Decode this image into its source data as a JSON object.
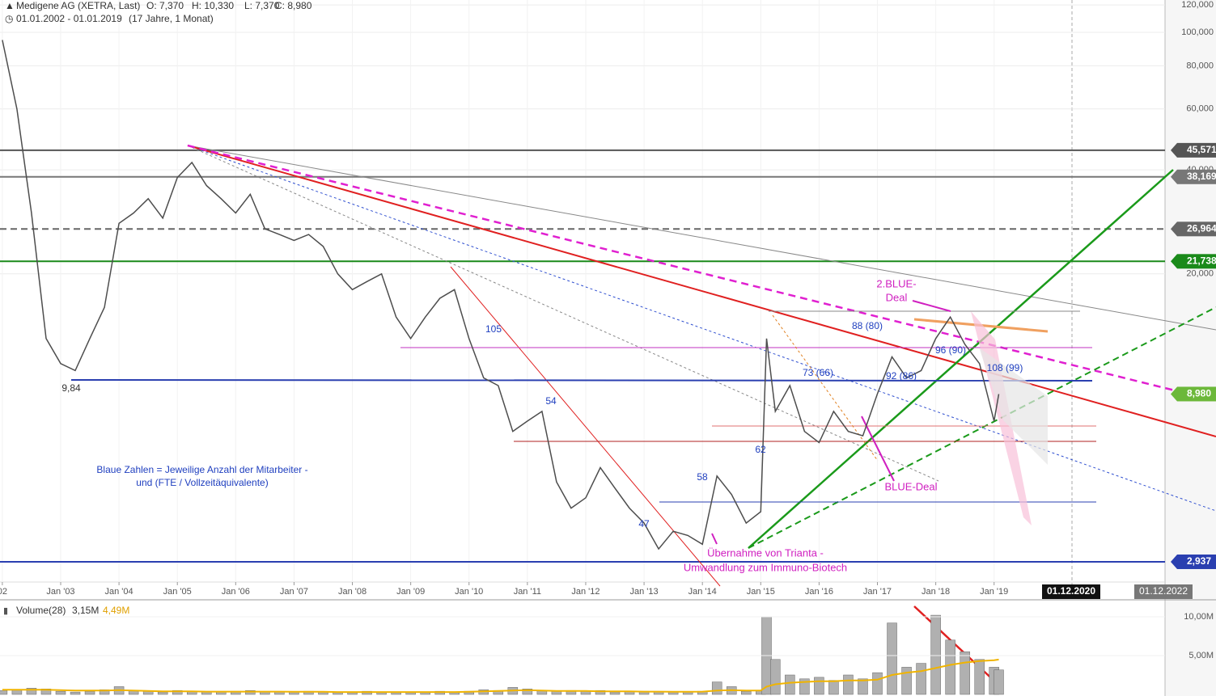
{
  "header": {
    "title": "Medigene AG (XETRA, Last)",
    "open": "O: 7,370",
    "high": "H: 10,330",
    "low": "L: 7,370",
    "close": "C: 8,980",
    "range": "01.01.2002 - 01.01.2019",
    "duration": "(17 Jahre, 1 Monat)"
  },
  "date_markers": [
    "01.12.2020",
    "01.12.2022"
  ],
  "annotations": [
    "9,84",
    "105",
    "54",
    "47",
    "58",
    "62",
    "73 (66)",
    "88 (80)",
    "92 (86)",
    "96 (90)",
    "108 (99)",
    "2.BLUE-",
    "Deal",
    "BLUE-Deal",
    "Übernahme von Trianta -",
    "Umwandlung zum Immuno-Biotech",
    "Blaue Zahlen = Jeweilige Anzahl der Mitarbeiter -",
    "und (FTE / Vollzeitäquivalente)"
  ],
  "chart_data": [
    {
      "type": "line",
      "log_scale": true,
      "grid": true,
      "color": "#4d4d4d",
      "x": [
        2002,
        2002.25,
        2002.5,
        2002.75,
        2003,
        2003.25,
        2003.5,
        2003.75,
        2004,
        2004.25,
        2004.5,
        2004.75,
        2005,
        2005.25,
        2005.5,
        2005.75,
        2006,
        2006.25,
        2006.5,
        2006.75,
        2007,
        2007.25,
        2007.5,
        2007.75,
        2008,
        2008.25,
        2008.5,
        2008.75,
        2009,
        2009.25,
        2009.5,
        2009.75,
        2010,
        2010.25,
        2010.5,
        2010.75,
        2011,
        2011.25,
        2011.5,
        2011.75,
        2012,
        2012.25,
        2012.5,
        2012.75,
        2013,
        2013.25,
        2013.5,
        2013.75,
        2014,
        2014.25,
        2014.5,
        2014.75,
        2015,
        2015.1,
        2015.25,
        2015.5,
        2015.75,
        2016,
        2016.25,
        2016.5,
        2016.75,
        2017,
        2017.25,
        2017.5,
        2017.75,
        2018,
        2018.25,
        2018.5,
        2018.75,
        2019,
        2019.08
      ],
      "values": [
        95,
        60,
        30,
        13,
        11,
        10.5,
        13,
        16,
        28,
        30,
        33,
        29,
        38,
        42,
        36,
        33,
        30,
        34,
        27,
        26,
        25,
        26,
        24,
        20,
        18,
        19,
        20,
        15,
        13,
        15,
        17,
        18,
        13,
        10,
        9.5,
        7,
        7.5,
        8,
        5,
        4.2,
        4.5,
        5.5,
        4.8,
        4.2,
        3.8,
        3.2,
        3.6,
        3.5,
        3.3,
        5.2,
        4.6,
        3.8,
        4.1,
        13,
        8,
        9.5,
        7,
        6.5,
        8,
        7,
        6.8,
        9,
        11.5,
        10,
        10.5,
        13,
        15,
        12.5,
        11,
        7.5,
        8.98
      ],
      "xlim": [
        2001.96,
        2021.93
      ],
      "xticks": [
        {
          "value": 2002,
          "label": "02"
        },
        {
          "value": 2003,
          "label": "Jan '03"
        },
        {
          "value": 2004,
          "label": "Jan '04"
        },
        {
          "value": 2005,
          "label": "Jan '05"
        },
        {
          "value": 2006,
          "label": "Jan '06"
        },
        {
          "value": 2007,
          "label": "Jan '07"
        },
        {
          "value": 2008,
          "label": "Jan '08"
        },
        {
          "value": 2009,
          "label": "Jan '09"
        },
        {
          "value": 2010,
          "label": "Jan '10"
        },
        {
          "value": 2011,
          "label": "Jan '11"
        },
        {
          "value": 2012,
          "label": "Jan '12"
        },
        {
          "value": 2013,
          "label": "Jan '13"
        },
        {
          "value": 2014,
          "label": "Jan '14"
        },
        {
          "value": 2015,
          "label": "Jan '15"
        },
        {
          "value": 2016,
          "label": "Jan '16"
        },
        {
          "value": 2017,
          "label": "Jan '17"
        },
        {
          "value": 2018,
          "label": "Jan '18"
        },
        {
          "value": 2019,
          "label": "Jan '19"
        }
      ],
      "ylim": [
        2.28,
        124
      ],
      "yticks": [
        {
          "value": 20,
          "label": "20,000"
        },
        {
          "value": 40,
          "label": "40,000"
        },
        {
          "value": 60,
          "label": "60,000"
        },
        {
          "value": 80,
          "label": "80,000"
        },
        {
          "value": 100,
          "label": "100,000"
        },
        {
          "value": 120,
          "label": "120,000"
        }
      ],
      "levels": [
        {
          "value": 45.571,
          "label": "45,571",
          "color": "#555555",
          "dashed": false
        },
        {
          "value": 38.169,
          "label": "38,169",
          "color": "#777777",
          "dashed": false
        },
        {
          "value": 26.964,
          "label": "26,964",
          "color": "#666666",
          "dashed": true
        },
        {
          "value": 21.738,
          "label": "21,738",
          "color": "#1a8a1a",
          "dashed": false
        },
        {
          "value": 8.98,
          "label": "8,980",
          "color": "#6cb83a",
          "dashed": false
        },
        {
          "value": 2.937,
          "label": "2,937",
          "color": "#2a3fb0",
          "dashed": false
        }
      ]
    },
    {
      "type": "bar",
      "title": "Volume(28)",
      "last_volume": "3,15M",
      "last_average": "4,49M",
      "color": "#b0b0b0",
      "average_color": "#f0b400",
      "values": [
        0.5,
        0.6,
        0.8,
        0.7,
        0.4,
        0.3,
        0.4,
        0.6,
        1.0,
        0.5,
        0.4,
        0.3,
        0.5,
        0.4,
        0.3,
        0.3,
        0.4,
        0.5,
        0.3,
        0.3,
        0.3,
        0.4,
        0.3,
        0.3,
        0.3,
        0.4,
        0.3,
        0.3,
        0.3,
        0.3,
        0.4,
        0.3,
        0.4,
        0.6,
        0.5,
        0.9,
        0.7,
        0.5,
        0.4,
        0.5,
        0.4,
        0.5,
        0.3,
        0.4,
        0.4,
        0.3,
        0.3,
        0.3,
        0.4,
        1.6,
        1.0,
        0.4,
        0.5,
        10,
        4.5,
        2.5,
        2.0,
        2.2,
        1.8,
        2.5,
        2.0,
        2.8,
        9.2,
        3.5,
        4.0,
        10.2,
        7.0,
        5.5,
        4.5,
        3.5,
        3.15
      ],
      "average": [
        0.6,
        0.6,
        0.6,
        0.6,
        0.55,
        0.5,
        0.5,
        0.5,
        0.55,
        0.5,
        0.45,
        0.4,
        0.4,
        0.4,
        0.35,
        0.35,
        0.35,
        0.35,
        0.35,
        0.35,
        0.33,
        0.33,
        0.33,
        0.3,
        0.3,
        0.3,
        0.3,
        0.3,
        0.3,
        0.3,
        0.3,
        0.3,
        0.33,
        0.4,
        0.45,
        0.5,
        0.55,
        0.5,
        0.45,
        0.45,
        0.45,
        0.4,
        0.4,
        0.4,
        0.35,
        0.35,
        0.33,
        0.33,
        0.35,
        0.5,
        0.55,
        0.5,
        0.5,
        1.0,
        1.3,
        1.5,
        1.6,
        1.7,
        1.7,
        1.8,
        1.8,
        1.9,
        2.5,
        2.8,
        3.0,
        3.4,
        3.8,
        4.1,
        4.3,
        4.4,
        4.49
      ],
      "ylim": [
        0,
        11.56
      ],
      "yticks": [
        {
          "value": 5,
          "label": "5,00M"
        },
        {
          "value": 10,
          "label": "10,00M"
        }
      ]
    }
  ]
}
